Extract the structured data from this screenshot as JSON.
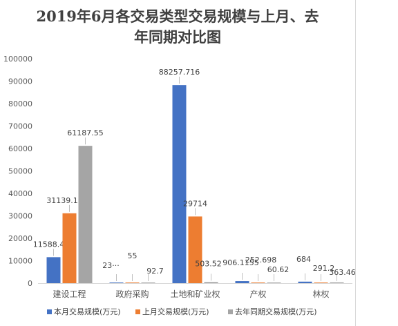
{
  "chart_data": {
    "type": "bar",
    "title_lines": [
      "2019年6月各交易类型交易规模与上月、去",
      "年同期对比图"
    ],
    "categories": [
      "建设工程",
      "政府采购",
      "土地和矿业权",
      "产权",
      "林权"
    ],
    "series": [
      {
        "name": "本月交易规模(万元)",
        "color": "#4472c4",
        "values": [
          11588.455,
          23,
          88257.716,
          906.1155,
          684
        ],
        "labels": [
          "11588.455",
          "23···",
          "88257.716",
          "906.1155",
          "684"
        ]
      },
      {
        "name": "上月交易规模(万元)",
        "color": "#ed7d31",
        "values": [
          31139.1907,
          55,
          29714,
          252.698,
          291.2
        ],
        "labels": [
          "31139.1907",
          "55",
          "29714",
          "252.698",
          "291.2"
        ]
      },
      {
        "name": "去年同期交易规模(万元)",
        "color": "#a5a5a5",
        "values": [
          61187.55,
          92.7,
          503.52,
          60.62,
          363.46
        ],
        "labels": [
          "61187.55",
          "92.7",
          "503.52",
          "60.62",
          "363.46"
        ]
      }
    ],
    "ylim": [
      0,
      100000
    ],
    "yticks": [
      0,
      10000,
      20000,
      30000,
      40000,
      50000,
      60000,
      70000,
      80000,
      90000,
      100000
    ],
    "grid": false,
    "legend": "bottom"
  }
}
